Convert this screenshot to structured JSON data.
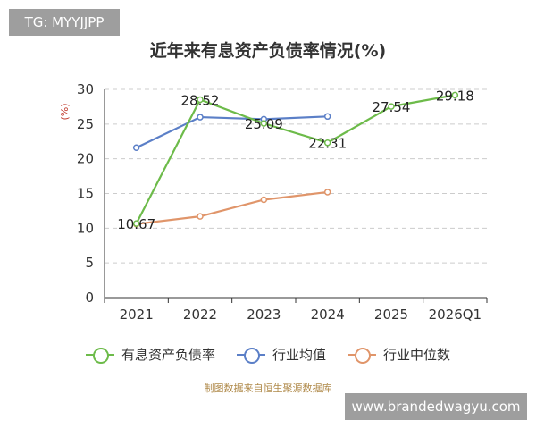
{
  "badge": "TG: MYYJJPP",
  "title": "近年来有息资产负债率情况(%)",
  "source": "制图数据来自恒生聚源数据库",
  "watermark": "www.brandedwagyu.com",
  "legend": [
    {
      "label": "有息资产负债率",
      "color": "#6dbb4a"
    },
    {
      "label": "行业均值",
      "color": "#5b7fc7"
    },
    {
      "label": "行业中位数",
      "color": "#e0956a"
    }
  ],
  "chart_data": {
    "type": "line",
    "title": "近年来有息资产负债率情况(%)",
    "ylabel": "(%)",
    "xlabel": "",
    "categories": [
      "2021",
      "2022",
      "2023",
      "2024",
      "2025",
      "2026Q1"
    ],
    "ylim": [
      0,
      30
    ],
    "yticks": [
      0,
      5,
      10,
      15,
      20,
      25,
      30
    ],
    "grid": true,
    "legend_position": "bottom",
    "series": [
      {
        "name": "有息资产负债率",
        "color": "#6dbb4a",
        "values": [
          10.67,
          28.52,
          25.09,
          22.31,
          27.54,
          29.18
        ],
        "show_labels": true
      },
      {
        "name": "行业均值",
        "color": "#5b7fc7",
        "values": [
          21.6,
          26.0,
          25.7,
          26.1,
          null,
          null
        ],
        "show_labels": false
      },
      {
        "name": "行业中位数",
        "color": "#e0956a",
        "values": [
          10.6,
          11.7,
          14.1,
          15.2,
          null,
          null
        ],
        "show_labels": false
      }
    ]
  }
}
